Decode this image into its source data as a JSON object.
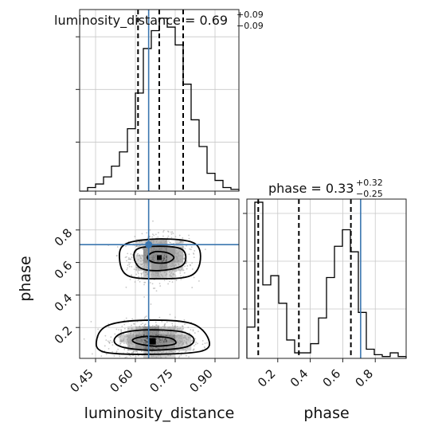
{
  "chart_data": {
    "type": "corner-plot",
    "parameters": [
      "luminosity_distance",
      "phase"
    ],
    "truth": {
      "luminosity_distance": 0.65,
      "phase": 0.71
    },
    "truth_color": "#3b76af",
    "titles": [
      {
        "param": "luminosity_distance",
        "text": "luminosity_distance = 0.69",
        "plus": "+0.09",
        "minus": "−0.09"
      },
      {
        "param": "phase",
        "text": "phase = 0.33",
        "plus": "+0.32",
        "minus": "−0.25"
      }
    ],
    "axis_labels": {
      "x_bottom_left": "luminosity_distance",
      "x_bottom_right": "phase",
      "y_left": "phase"
    },
    "ranges": {
      "luminosity_distance": [
        0.39,
        0.99
      ],
      "phase": [
        0.01,
        0.99
      ]
    },
    "ticks": {
      "luminosity_distance": {
        "values": [
          0.45,
          0.6,
          0.75,
          0.9
        ],
        "labels": [
          "0.45",
          "0.60",
          "0.75",
          "0.90"
        ]
      },
      "phase": {
        "values": [
          0.2,
          0.4,
          0.6,
          0.8
        ],
        "labels": [
          "0.2",
          "0.4",
          "0.6",
          "0.8"
        ]
      }
    },
    "hist_luminosity_distance": {
      "bin_start": 0.39,
      "bin_width": 0.03,
      "counts": [
        0,
        2,
        4,
        8,
        14,
        22,
        35,
        55,
        80,
        90,
        97,
        92,
        82,
        60,
        40,
        25,
        10,
        6,
        2,
        1
      ],
      "quantiles": [
        0.61,
        0.69,
        0.78
      ]
    },
    "hist_phase": {
      "bin_start": 0.01,
      "bin_width": 0.049,
      "counts": [
        17,
        85,
        40,
        45,
        30,
        10,
        3,
        3,
        8,
        22,
        44,
        61,
        70,
        58,
        25,
        5,
        2,
        1,
        3,
        1
      ],
      "quantiles": [
        0.08,
        0.33,
        0.65
      ]
    },
    "blobs": [
      {
        "cx": 0.69,
        "cy": 0.625,
        "sx": 0.055,
        "sy": 0.07,
        "n": 900
      },
      {
        "cx": 0.67,
        "cy": 0.12,
        "sx": 0.07,
        "sy": 0.055,
        "n": 1100
      }
    ],
    "contours": [
      [
        [
          0.67,
          0.6
        ],
        [
          0.72,
          0.6
        ],
        [
          0.745,
          0.63
        ],
        [
          0.72,
          0.66
        ],
        [
          0.67,
          0.665
        ],
        [
          0.645,
          0.63
        ]
      ],
      [
        [
          0.62,
          0.565
        ],
        [
          0.69,
          0.55
        ],
        [
          0.77,
          0.575
        ],
        [
          0.79,
          0.63
        ],
        [
          0.77,
          0.685
        ],
        [
          0.69,
          0.7
        ],
        [
          0.61,
          0.685
        ],
        [
          0.595,
          0.63
        ]
      ],
      [
        [
          0.57,
          0.52
        ],
        [
          0.69,
          0.5
        ],
        [
          0.81,
          0.52
        ],
        [
          0.845,
          0.62
        ],
        [
          0.82,
          0.72
        ],
        [
          0.69,
          0.745
        ],
        [
          0.565,
          0.715
        ],
        [
          0.54,
          0.63
        ]
      ],
      [
        [
          0.61,
          0.1
        ],
        [
          0.68,
          0.085
        ],
        [
          0.75,
          0.1
        ],
        [
          0.73,
          0.135
        ],
        [
          0.64,
          0.145
        ],
        [
          0.59,
          0.125
        ]
      ],
      [
        [
          0.55,
          0.08
        ],
        [
          0.66,
          0.06
        ],
        [
          0.79,
          0.08
        ],
        [
          0.82,
          0.13
        ],
        [
          0.77,
          0.175
        ],
        [
          0.64,
          0.185
        ],
        [
          0.55,
          0.165
        ],
        [
          0.52,
          0.12
        ]
      ],
      [
        [
          0.48,
          0.05
        ],
        [
          0.66,
          0.035
        ],
        [
          0.85,
          0.055
        ],
        [
          0.875,
          0.13
        ],
        [
          0.81,
          0.225
        ],
        [
          0.64,
          0.245
        ],
        [
          0.5,
          0.215
        ],
        [
          0.455,
          0.13
        ]
      ]
    ],
    "grid": true
  }
}
